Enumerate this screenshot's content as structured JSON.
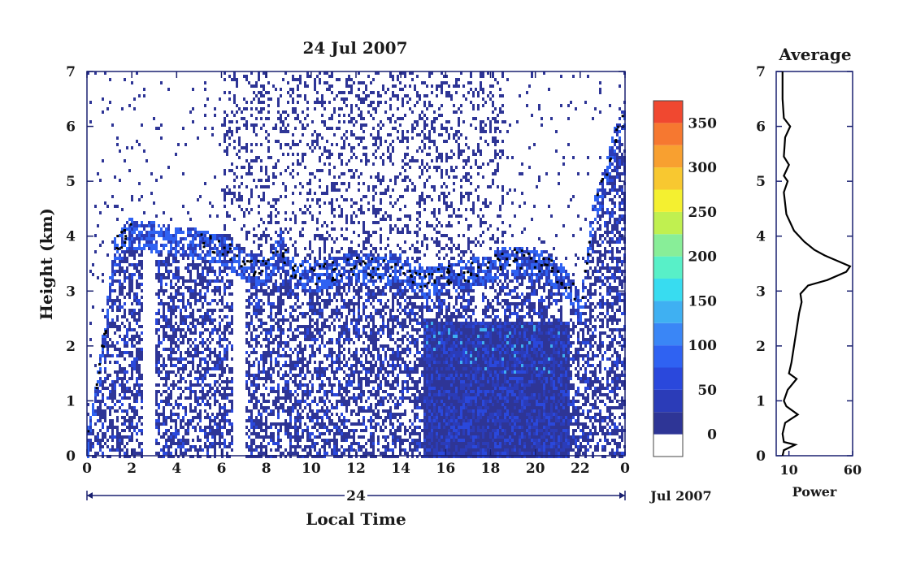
{
  "chart_data": [
    {
      "type": "heatmap",
      "title": "24 Jul 2007",
      "xlabel": "Local Time",
      "ylabel": "Height (km)",
      "x_ticks": [
        "0",
        "2",
        "4",
        "6",
        "8",
        "10",
        "12",
        "14",
        "16",
        "18",
        "20",
        "22",
        "0"
      ],
      "y_ticks": [
        "0",
        "1",
        "2",
        "3",
        "4",
        "5",
        "6",
        "7"
      ],
      "xlim": [
        0,
        24
      ],
      "ylim": [
        0,
        7
      ],
      "date_bar_label": "24",
      "date_bar_suffix": "Jul 2007",
      "colorbar": {
        "ticks": [
          "0",
          "50",
          "100",
          "150",
          "200",
          "250",
          "300",
          "350"
        ],
        "range": [
          -25,
          375
        ],
        "colors": [
          "#ffffff",
          "#2e3596",
          "#2b3cb8",
          "#2a48dc",
          "#2f62f2",
          "#3a86f6",
          "#3fb0f2",
          "#38dcf0",
          "#58f0c8",
          "#88ee98",
          "#c0f050",
          "#f4f030",
          "#f8c830",
          "#f8a030",
          "#f67830",
          "#f04830"
        ]
      },
      "boundary_layer": [
        {
          "x": 0.0,
          "y": 0.3
        },
        {
          "x": 0.5,
          "y": 1.5
        },
        {
          "x": 1.2,
          "y": 3.8
        },
        {
          "x": 1.8,
          "y": 4.1
        },
        {
          "x": 3.5,
          "y": 4.0
        },
        {
          "x": 5.0,
          "y": 3.9
        },
        {
          "x": 6.0,
          "y": 3.8
        },
        {
          "x": 7.0,
          "y": 3.5
        },
        {
          "x": 8.0,
          "y": 3.4
        },
        {
          "x": 8.6,
          "y": 3.9
        },
        {
          "x": 9.0,
          "y": 3.4
        },
        {
          "x": 10.0,
          "y": 3.3
        },
        {
          "x": 11.0,
          "y": 3.4
        },
        {
          "x": 12.0,
          "y": 3.5
        },
        {
          "x": 13.0,
          "y": 3.4
        },
        {
          "x": 14.0,
          "y": 3.5
        },
        {
          "x": 15.0,
          "y": 3.2
        },
        {
          "x": 16.0,
          "y": 3.3
        },
        {
          "x": 17.5,
          "y": 3.4
        },
        {
          "x": 18.5,
          "y": 3.6
        },
        {
          "x": 19.5,
          "y": 3.6
        },
        {
          "x": 20.5,
          "y": 3.5
        },
        {
          "x": 21.5,
          "y": 3.1
        },
        {
          "x": 22.0,
          "y": 2.7
        },
        {
          "x": 22.5,
          "y": 4.4
        },
        {
          "x": 23.0,
          "y": 5.0
        },
        {
          "x": 23.5,
          "y": 5.8
        },
        {
          "x": 24.0,
          "y": 6.2
        }
      ]
    },
    {
      "type": "line",
      "title": "Average",
      "xlabel": "Power",
      "x_ticks": [
        "10",
        "60"
      ],
      "y_ticks": [
        "0",
        "1",
        "2",
        "3",
        "4",
        "5",
        "6",
        "7"
      ],
      "xlim": [
        0,
        60
      ],
      "ylim": [
        0,
        7
      ],
      "profile": [
        {
          "h": 0.0,
          "p": 5
        },
        {
          "h": 0.1,
          "p": 6
        },
        {
          "h": 0.2,
          "p": 15
        },
        {
          "h": 0.25,
          "p": 6
        },
        {
          "h": 0.4,
          "p": 5
        },
        {
          "h": 0.6,
          "p": 7
        },
        {
          "h": 0.75,
          "p": 17
        },
        {
          "h": 0.9,
          "p": 8
        },
        {
          "h": 1.0,
          "p": 6
        },
        {
          "h": 1.2,
          "p": 9
        },
        {
          "h": 1.4,
          "p": 16
        },
        {
          "h": 1.5,
          "p": 10
        },
        {
          "h": 1.7,
          "p": 12
        },
        {
          "h": 2.0,
          "p": 14
        },
        {
          "h": 2.3,
          "p": 16
        },
        {
          "h": 2.6,
          "p": 18
        },
        {
          "h": 2.8,
          "p": 20
        },
        {
          "h": 2.95,
          "p": 19
        },
        {
          "h": 3.1,
          "p": 25
        },
        {
          "h": 3.2,
          "p": 40
        },
        {
          "h": 3.35,
          "p": 55
        },
        {
          "h": 3.45,
          "p": 58
        },
        {
          "h": 3.55,
          "p": 48
        },
        {
          "h": 3.65,
          "p": 38
        },
        {
          "h": 3.75,
          "p": 30
        },
        {
          "h": 3.9,
          "p": 22
        },
        {
          "h": 4.1,
          "p": 14
        },
        {
          "h": 4.4,
          "p": 8
        },
        {
          "h": 4.8,
          "p": 6
        },
        {
          "h": 5.0,
          "p": 9
        },
        {
          "h": 5.1,
          "p": 6
        },
        {
          "h": 5.3,
          "p": 10
        },
        {
          "h": 5.45,
          "p": 6
        },
        {
          "h": 5.8,
          "p": 7
        },
        {
          "h": 6.0,
          "p": 11
        },
        {
          "h": 6.15,
          "p": 6
        },
        {
          "h": 6.5,
          "p": 5
        },
        {
          "h": 7.0,
          "p": 5
        }
      ]
    }
  ]
}
